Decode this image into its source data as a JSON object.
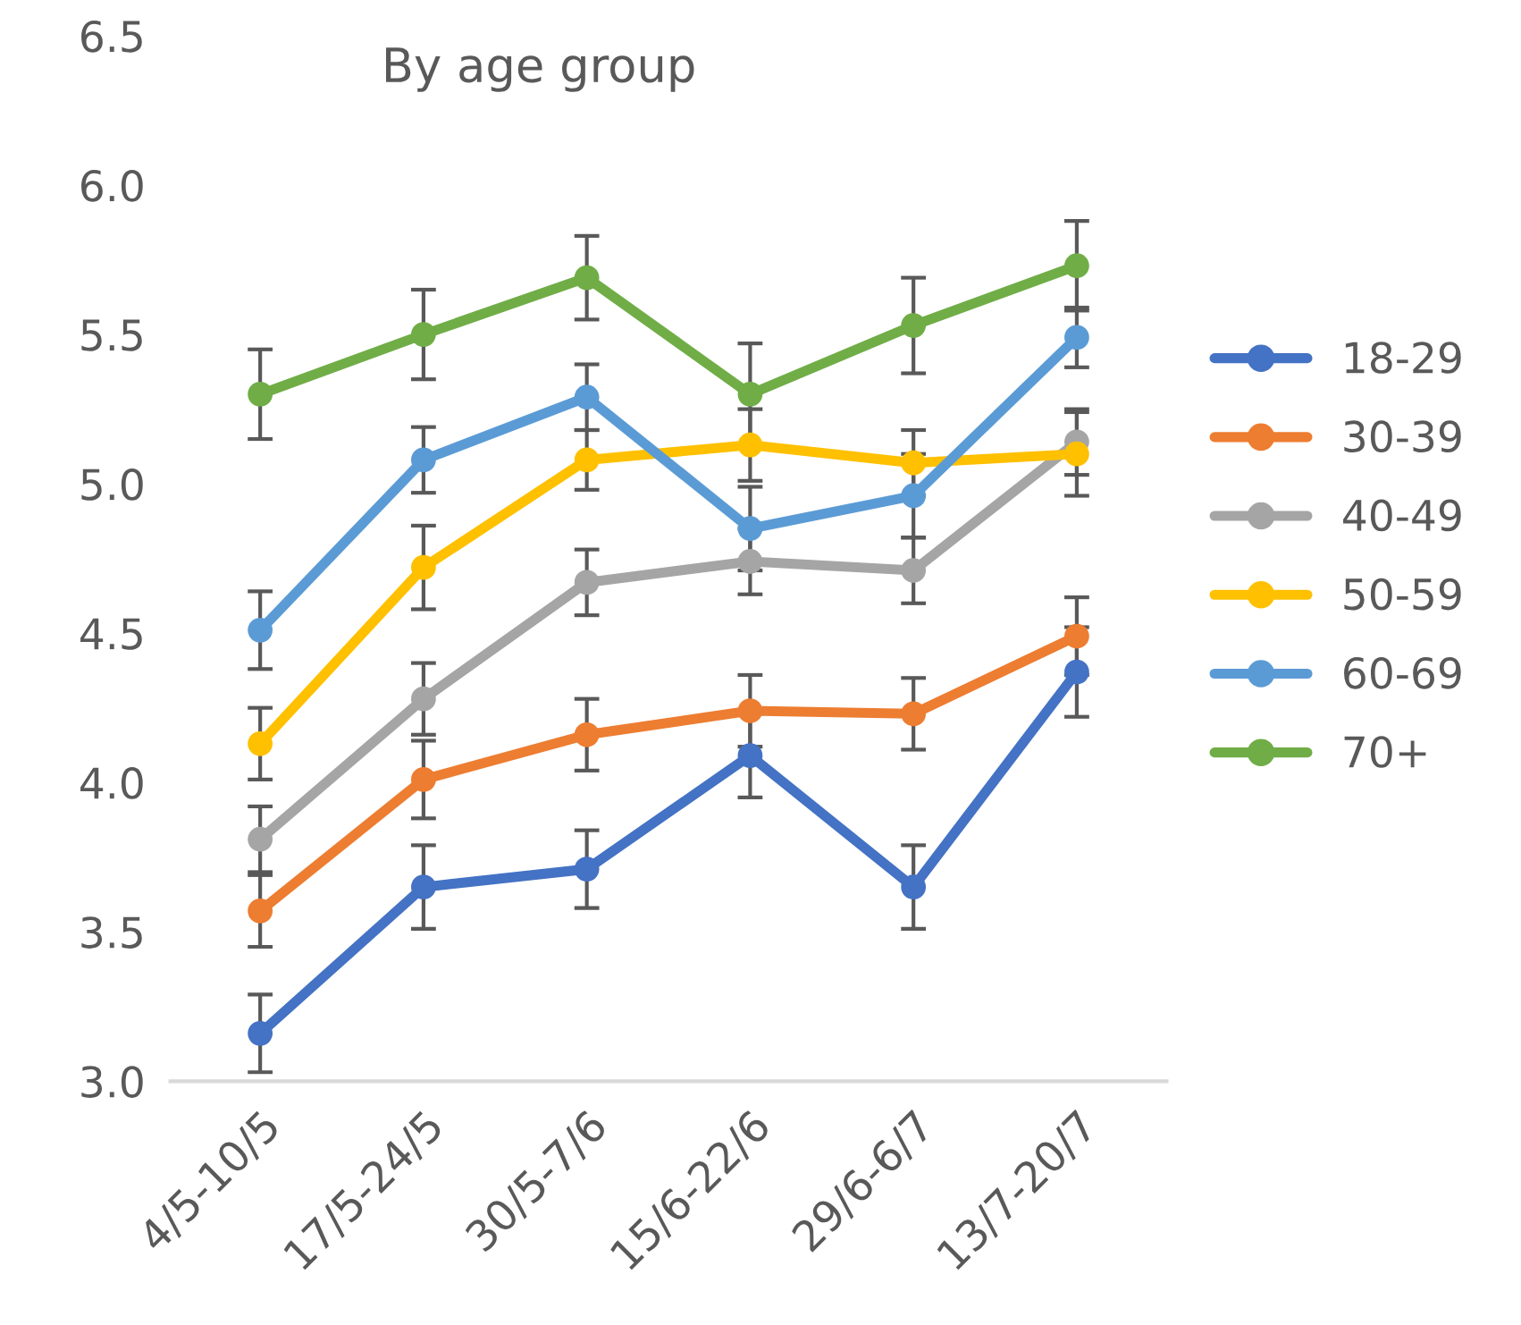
{
  "chart_data": {
    "type": "line",
    "title": "By age group",
    "categories": [
      "4/5-10/5",
      "17/5-24/5",
      "30/5-7/6",
      "15/6-22/6",
      "29/6-6/7",
      "13/7-20/7"
    ],
    "series": [
      {
        "name": "18-29",
        "color": "#4472c4",
        "values": [
          3.16,
          3.65,
          3.71,
          4.09,
          3.65,
          4.37
        ],
        "errors": [
          0.13,
          0.14,
          0.13,
          0.14,
          0.14,
          0.15
        ]
      },
      {
        "name": "30-39",
        "color": "#ed7d31",
        "values": [
          3.57,
          4.01,
          4.16,
          4.24,
          4.23,
          4.49
        ],
        "errors": [
          0.12,
          0.13,
          0.12,
          0.12,
          0.12,
          0.13
        ]
      },
      {
        "name": "40-49",
        "color": "#a5a5a5",
        "values": [
          3.81,
          4.28,
          4.67,
          4.74,
          4.71,
          5.14
        ],
        "errors": [
          0.11,
          0.12,
          0.11,
          0.11,
          0.11,
          0.11
        ]
      },
      {
        "name": "50-59",
        "color": "#ffc000",
        "values": [
          4.13,
          4.72,
          5.08,
          5.13,
          5.07,
          5.1
        ],
        "errors": [
          0.12,
          0.14,
          0.1,
          0.12,
          0.11,
          0.14
        ]
      },
      {
        "name": "60-69",
        "color": "#5b9bd5",
        "values": [
          4.51,
          5.08,
          5.29,
          4.85,
          4.96,
          5.49
        ],
        "errors": [
          0.13,
          0.11,
          0.11,
          0.14,
          0.14,
          0.1
        ]
      },
      {
        "name": "70+",
        "color": "#70ad47",
        "values": [
          5.3,
          5.5,
          5.69,
          5.3,
          5.53,
          5.73
        ],
        "errors": [
          0.15,
          0.15,
          0.14,
          0.17,
          0.16,
          0.15
        ]
      }
    ],
    "ylim": [
      3.0,
      6.5
    ],
    "yticks": [
      {
        "value": 3.0,
        "label": "3.0"
      },
      {
        "value": 3.5,
        "label": "3.5"
      },
      {
        "value": 4.0,
        "label": "4.0"
      },
      {
        "value": 4.5,
        "label": "4.5"
      },
      {
        "value": 5.0,
        "label": "5.0"
      },
      {
        "value": 5.5,
        "label": "5.5"
      },
      {
        "value": 6.0,
        "label": "6.0"
      },
      {
        "value": 6.5,
        "label": "6.5"
      }
    ],
    "marker": "circle",
    "line_style": "solid",
    "legend": "right",
    "grid": false
  }
}
